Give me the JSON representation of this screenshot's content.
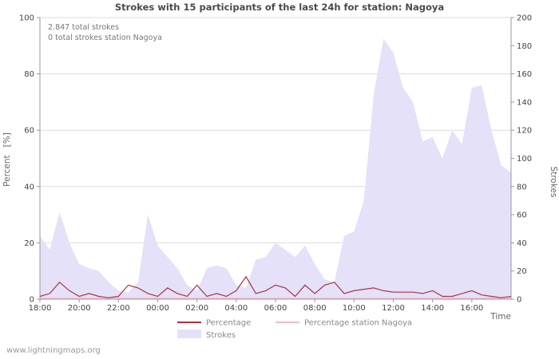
{
  "title": "Strokes with 15 participants of the last 24h for station: Nagoya",
  "annotations": {
    "total_strokes": "2.847 total strokes",
    "station_strokes": "0 total strokes station Nagoya"
  },
  "axes": {
    "left_label": "Percent   [%]",
    "right_label": "Strokes",
    "x_label": "Time",
    "left_ticks": [
      0,
      20,
      40,
      60,
      80,
      100
    ],
    "right_ticks": [
      0,
      20,
      40,
      60,
      80,
      100,
      120,
      140,
      160,
      180,
      200
    ],
    "x_ticks": [
      "18:00",
      "20:00",
      "22:00",
      "00:00",
      "02:00",
      "04:00",
      "06:00",
      "08:00",
      "10:00",
      "12:00",
      "14:00",
      "16:00"
    ]
  },
  "legend": [
    {
      "label": "Percentage",
      "color": "#aa3347",
      "type": "line"
    },
    {
      "label": "Percentage station Nagoya",
      "color": "#eaa7b8",
      "type": "line"
    },
    {
      "label": "Strokes",
      "color": "#e4e1f8",
      "type": "area"
    }
  ],
  "watermark": "www.lightningmaps.org",
  "colors": {
    "grid": "#dcdcdc",
    "axis": "#999999",
    "background": "#ffffff"
  },
  "chart_data": {
    "type": "area+line",
    "x": [
      "18:00",
      "18:30",
      "19:00",
      "19:30",
      "20:00",
      "20:30",
      "21:00",
      "21:30",
      "22:00",
      "22:30",
      "23:00",
      "23:30",
      "00:00",
      "00:30",
      "01:00",
      "01:30",
      "02:00",
      "02:30",
      "03:00",
      "03:30",
      "04:00",
      "04:30",
      "05:00",
      "05:30",
      "06:00",
      "06:30",
      "07:00",
      "07:30",
      "08:00",
      "08:30",
      "09:00",
      "09:30",
      "10:00",
      "10:30",
      "11:00",
      "11:30",
      "12:00",
      "12:30",
      "13:00",
      "13:30",
      "14:00",
      "14:30",
      "15:00",
      "15:30",
      "16:00",
      "16:30",
      "17:00",
      "17:30",
      "18:00"
    ],
    "left_range": [
      0,
      100
    ],
    "right_range": [
      0,
      200
    ],
    "series": [
      {
        "name": "Strokes",
        "axis": "right",
        "type": "area",
        "color": "#e4e1f8",
        "values": [
          45,
          35,
          62,
          40,
          25,
          22,
          20,
          12,
          6,
          5,
          12,
          60,
          38,
          30,
          22,
          10,
          6,
          22,
          24,
          22,
          10,
          8,
          28,
          30,
          40,
          35,
          30,
          38,
          25,
          14,
          12,
          45,
          48,
          70,
          145,
          185,
          175,
          150,
          140,
          112,
          115,
          100,
          120,
          110,
          150,
          152,
          120,
          95,
          90
        ]
      },
      {
        "name": "Percentage",
        "axis": "left",
        "type": "line",
        "color": "#aa3347",
        "values": [
          1,
          2,
          6,
          3,
          1,
          2,
          1,
          0.5,
          1,
          5,
          4,
          2,
          1,
          4,
          2,
          1,
          5,
          1,
          2,
          1,
          3,
          8,
          2,
          3,
          5,
          4,
          1,
          5,
          2,
          5,
          6,
          2,
          3,
          3.5,
          4,
          3,
          2.5,
          2.5,
          2.5,
          2,
          3,
          1,
          1,
          2,
          3,
          1.5,
          1,
          0.5,
          1
        ]
      },
      {
        "name": "Percentage station Nagoya",
        "axis": "left",
        "type": "line",
        "color": "#eaa7b8",
        "values": [
          0,
          0,
          0,
          0,
          0,
          0,
          0,
          0,
          0,
          0,
          0,
          0,
          0,
          0,
          0,
          0,
          0,
          0,
          0,
          0,
          0,
          0,
          0,
          0,
          0,
          0,
          0,
          0,
          0,
          0,
          0,
          0,
          0,
          0,
          0,
          0,
          0,
          0,
          0,
          0,
          0,
          0,
          0,
          0,
          0,
          0,
          0,
          0,
          0
        ]
      }
    ]
  }
}
